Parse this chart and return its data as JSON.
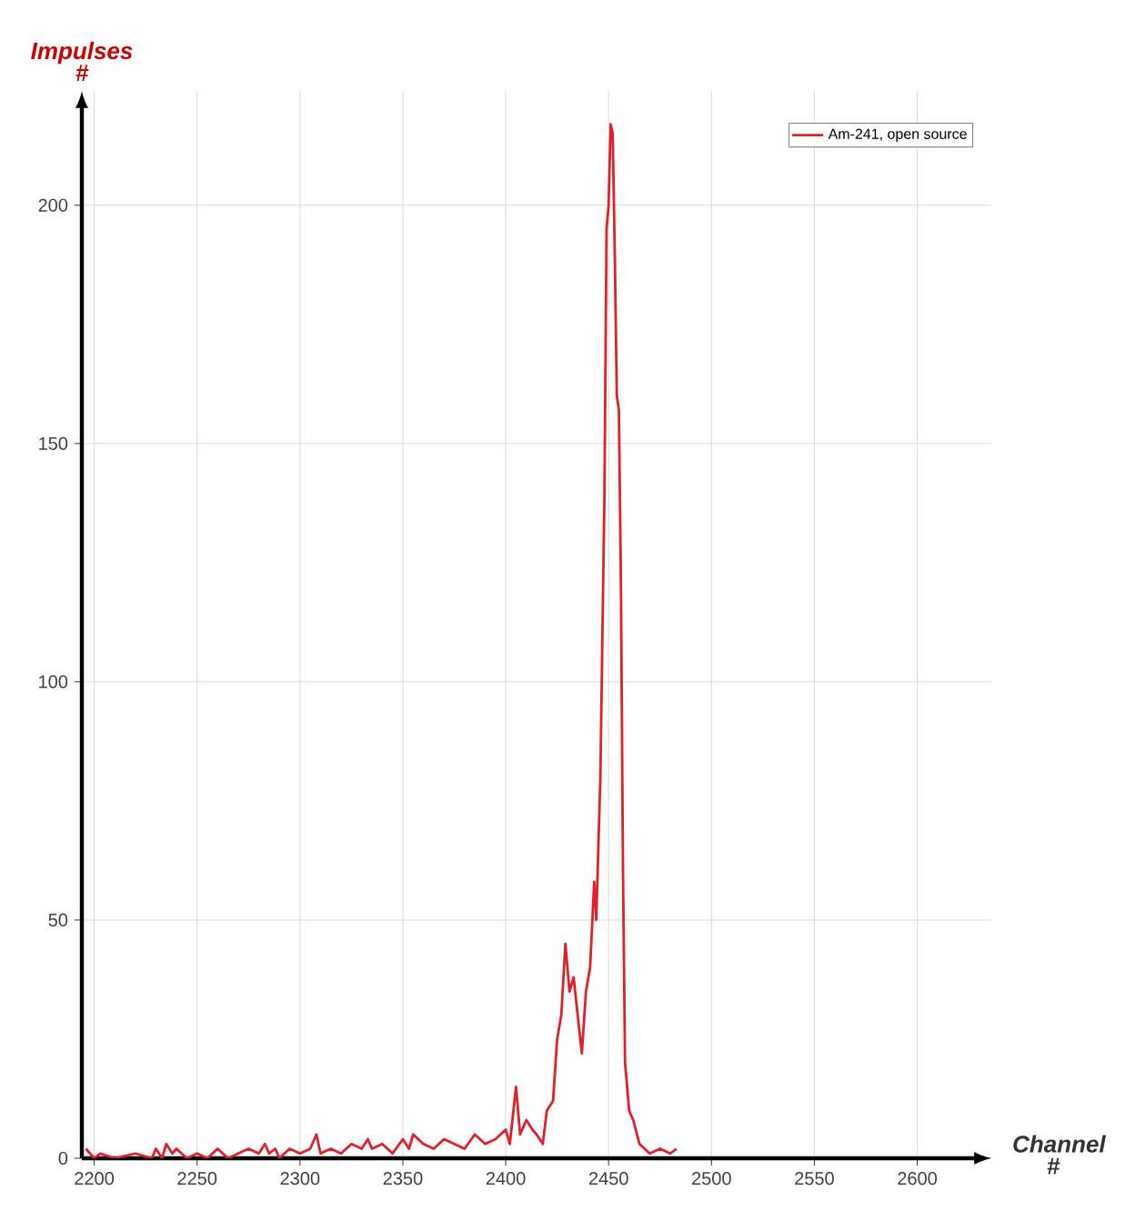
{
  "chart_data": {
    "type": "line",
    "xlabel": "Channel #",
    "ylabel": "Impulses #",
    "xlim": [
      2194,
      2636
    ],
    "ylim": [
      0,
      224
    ],
    "xticks": [
      2200,
      2250,
      2300,
      2350,
      2400,
      2450,
      2500,
      2550,
      2600
    ],
    "yticks": [
      0,
      50,
      100,
      150,
      200
    ],
    "grid": true,
    "legend": "top right",
    "marker": "none",
    "line_style": "solid",
    "series": [
      {
        "name": "Am-241, open source",
        "color": "#e0202a",
        "x": [
          2196,
          2200,
          2203,
          2210,
          2220,
          2228,
          2230,
          2233,
          2235,
          2238,
          2240,
          2245,
          2250,
          2255,
          2260,
          2265,
          2270,
          2275,
          2280,
          2283,
          2285,
          2288,
          2290,
          2295,
          2300,
          2305,
          2308,
          2310,
          2315,
          2320,
          2325,
          2330,
          2333,
          2335,
          2340,
          2345,
          2350,
          2353,
          2355,
          2360,
          2365,
          2370,
          2375,
          2380,
          2385,
          2390,
          2395,
          2400,
          2402,
          2405,
          2407,
          2410,
          2413,
          2415,
          2418,
          2420,
          2423,
          2425,
          2427,
          2429,
          2431,
          2433,
          2435,
          2437,
          2439,
          2441,
          2443,
          2444,
          2446,
          2448,
          2449,
          2450,
          2451,
          2452,
          2453,
          2454,
          2455,
          2456,
          2457,
          2458,
          2460,
          2462,
          2465,
          2470,
          2475,
          2480,
          2483
        ],
        "values": [
          2,
          0,
          1,
          0,
          1,
          0,
          2,
          0,
          3,
          1,
          2,
          0,
          1,
          0,
          2,
          0,
          1,
          2,
          1,
          3,
          1,
          2,
          0,
          2,
          1,
          2,
          5,
          1,
          2,
          1,
          3,
          2,
          4,
          2,
          3,
          1,
          4,
          2,
          5,
          3,
          2,
          4,
          3,
          2,
          5,
          3,
          4,
          6,
          3,
          15,
          5,
          8,
          6,
          5,
          3,
          10,
          12,
          25,
          30,
          45,
          35,
          38,
          30,
          22,
          35,
          40,
          58,
          50,
          80,
          140,
          195,
          200,
          217,
          215,
          190,
          160,
          157,
          120,
          60,
          20,
          10,
          8,
          3,
          1,
          2,
          1,
          2
        ]
      }
    ]
  }
}
